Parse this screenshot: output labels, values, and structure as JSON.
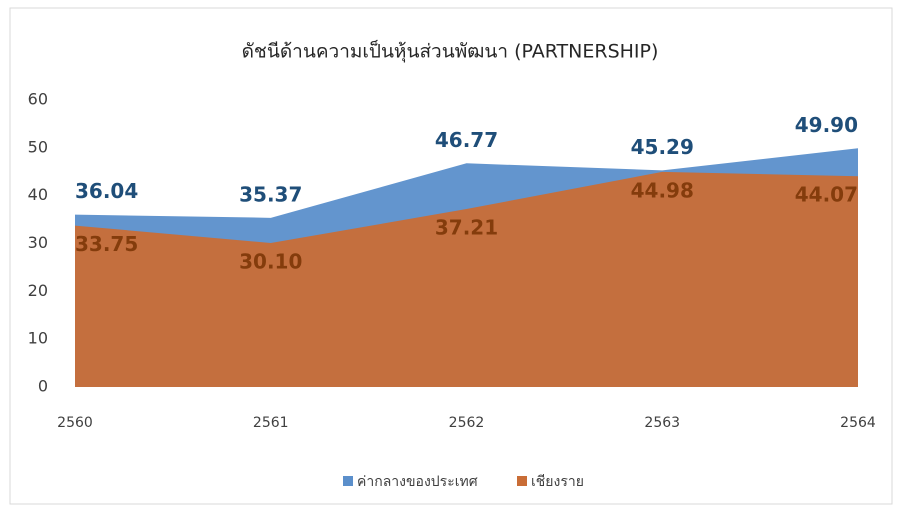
{
  "chart_data": {
    "type": "area",
    "title": "ดัชนีด้านความเป็นหุ้นส่วนพัฒนา (PARTNERSHIP)",
    "categories": [
      "2560",
      "2561",
      "2562",
      "2563",
      "2564"
    ],
    "series": [
      {
        "name": "ค่ากลางของประเทศ",
        "color": "#5b8fcb",
        "label_color": "#1f4e79",
        "values": [
          36.04,
          35.37,
          46.77,
          45.29,
          49.9
        ],
        "value_labels": [
          "36.04",
          "35.37",
          "46.77",
          "45.29",
          "49.90"
        ]
      },
      {
        "name": "เชียงราย",
        "color": "#c96d36",
        "label_color": "#843c0c",
        "values": [
          33.75,
          30.1,
          37.21,
          44.98,
          44.07
        ],
        "value_labels": [
          "33.75",
          "30.10",
          "37.21",
          "44.98",
          "44.07"
        ]
      }
    ],
    "ylim": [
      0,
      60
    ],
    "yticks": [
      0,
      10,
      20,
      30,
      40,
      50,
      60
    ],
    "legend": "bottom"
  }
}
